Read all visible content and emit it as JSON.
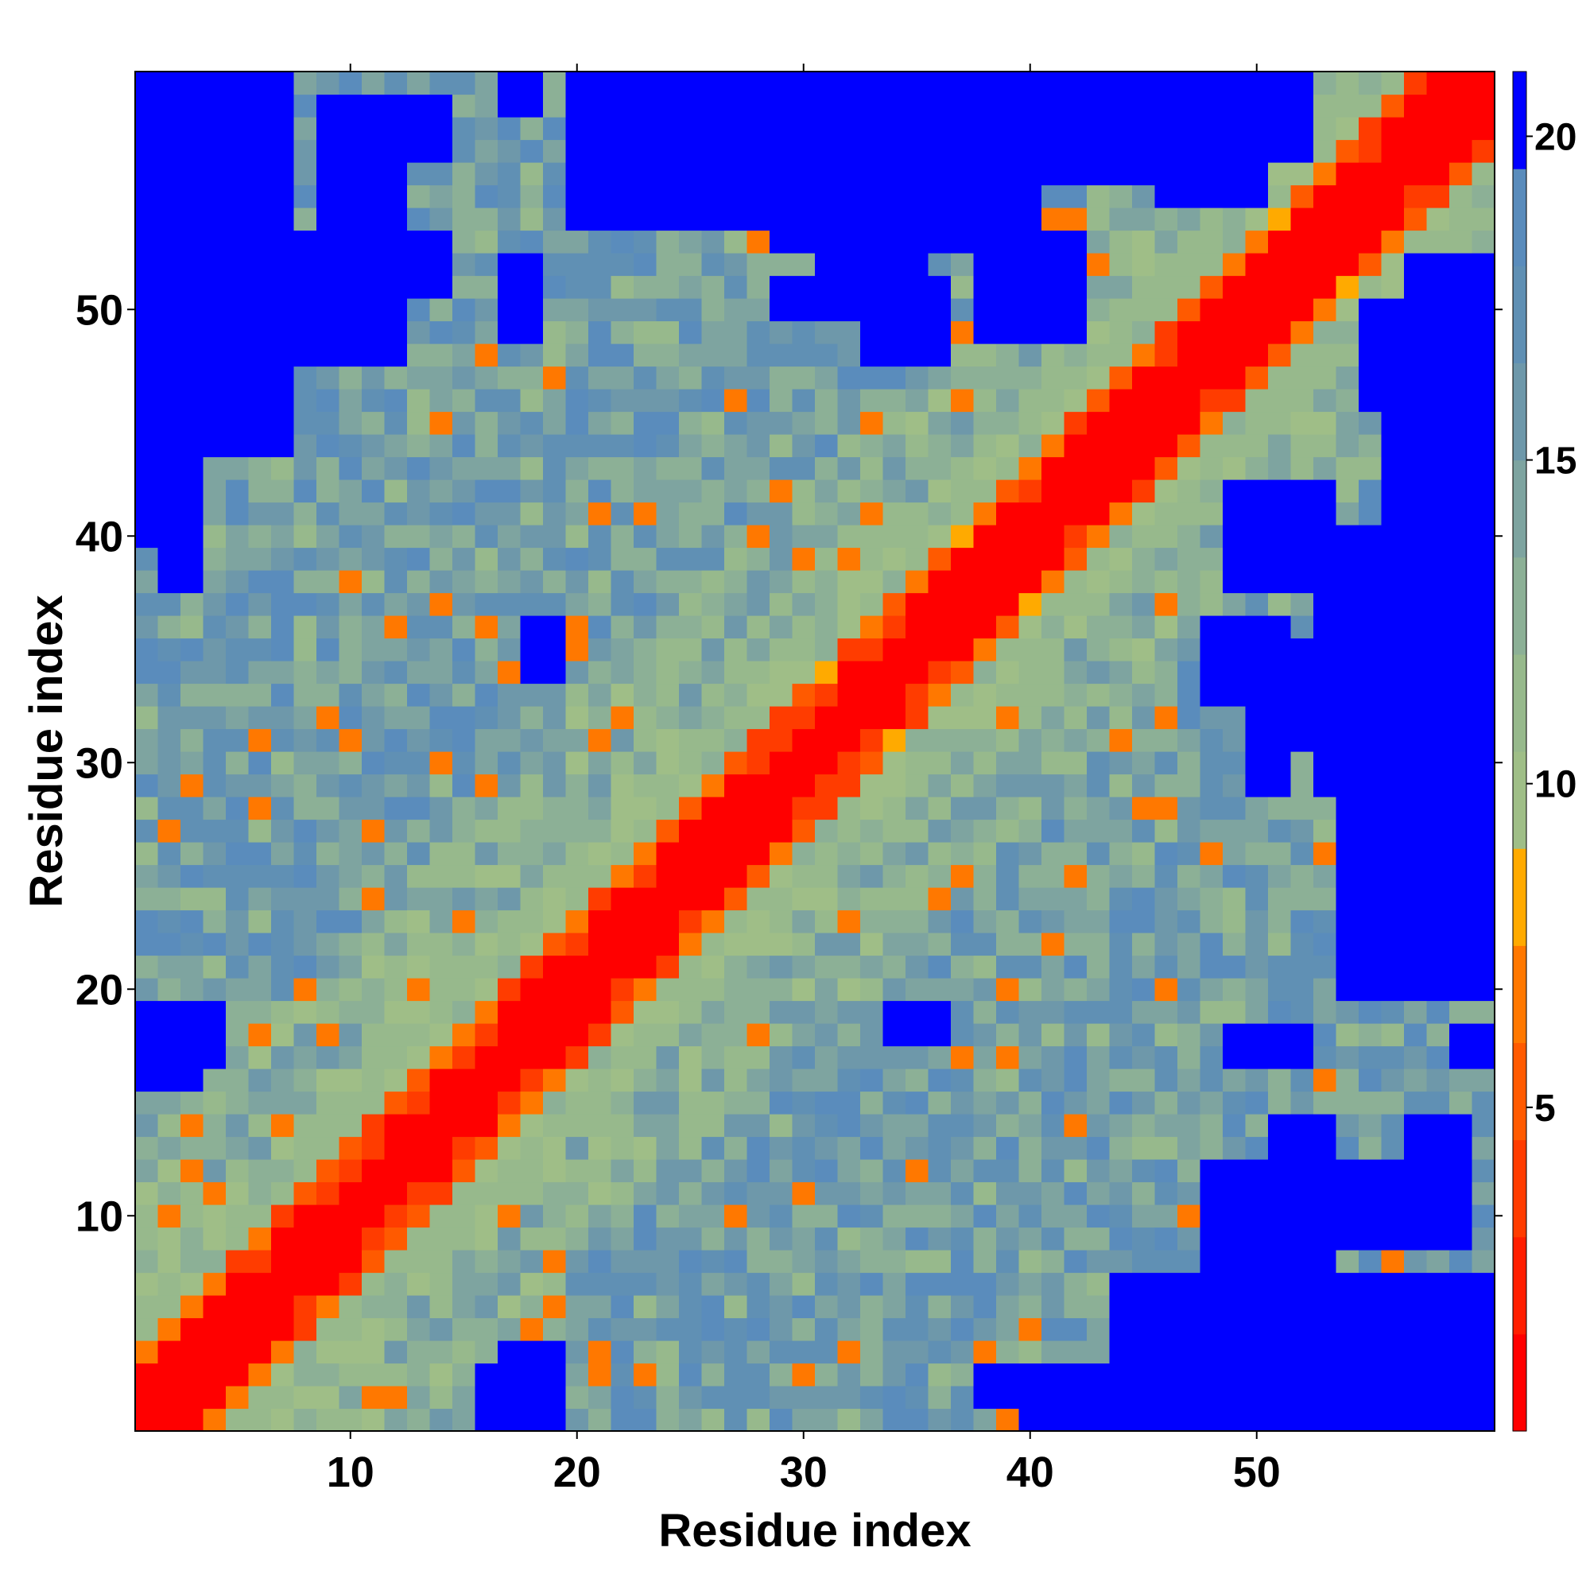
{
  "chart_data": {
    "type": "heatmap",
    "title": "",
    "xlabel": "Residue index",
    "ylabel": "Residue index",
    "n": 60,
    "xlim": [
      0.5,
      60.5
    ],
    "ylim": [
      0.5,
      60.5
    ],
    "x_ticks": [
      10,
      20,
      30,
      40,
      50
    ],
    "y_ticks": [
      10,
      20,
      30,
      40,
      50
    ],
    "colorbar": {
      "range": [
        0,
        21
      ],
      "ticks": [
        5,
        10,
        15,
        20
      ],
      "levels": [
        {
          "min": 0,
          "max": 1.5,
          "color": "#ff0000"
        },
        {
          "min": 1.5,
          "max": 3,
          "color": "#ff1e00"
        },
        {
          "min": 3,
          "max": 4.5,
          "color": "#ff3c00"
        },
        {
          "min": 4.5,
          "max": 6,
          "color": "#ff5a00"
        },
        {
          "min": 6,
          "max": 7.5,
          "color": "#ff7800"
        },
        {
          "min": 7.5,
          "max": 9,
          "color": "#ffaa00"
        },
        {
          "min": 9,
          "max": 10.5,
          "color": "#9fbe87"
        },
        {
          "min": 10.5,
          "max": 12,
          "color": "#97b98c"
        },
        {
          "min": 12,
          "max": 13.5,
          "color": "#8cb096"
        },
        {
          "min": 13.5,
          "max": 15,
          "color": "#7ea4a0"
        },
        {
          "min": 15,
          "max": 16.5,
          "color": "#6e98aa"
        },
        {
          "min": 16.5,
          "max": 18,
          "color": "#6090b4"
        },
        {
          "min": 18,
          "max": 19.5,
          "color": "#5a8cbc"
        },
        {
          "min": 19.5,
          "max": 21,
          "color": "#0000ff"
        }
      ]
    },
    "blue_regions": [
      [
        1,
        5,
        44,
        60
      ],
      [
        6,
        7,
        48,
        60
      ],
      [
        2,
        3,
        38,
        42
      ],
      [
        1,
        4,
        17,
        19
      ],
      [
        18,
        19,
        34,
        36
      ],
      [
        17,
        18,
        49,
        52
      ],
      [
        21,
        24,
        56,
        60
      ],
      [
        26,
        28,
        58,
        60
      ],
      [
        30,
        52,
        57,
        60
      ],
      [
        35,
        40,
        53,
        56
      ],
      [
        33,
        36,
        48,
        51
      ],
      [
        46,
        50,
        55,
        59
      ],
      [
        44,
        60,
        1,
        7
      ],
      [
        41,
        44,
        1,
        3
      ],
      [
        48,
        53,
        8,
        12
      ],
      [
        54,
        59,
        9,
        12
      ],
      [
        50,
        60,
        31,
        35
      ],
      [
        54,
        60,
        20,
        30
      ],
      [
        56,
        60,
        36,
        50
      ],
      [
        49,
        53,
        38,
        42
      ],
      [
        50,
        51,
        29,
        30
      ],
      [
        53,
        55,
        29,
        30
      ],
      [
        49,
        51,
        17,
        18
      ],
      [
        59,
        60,
        17,
        18
      ],
      [
        16,
        19,
        1,
        3
      ],
      [
        40,
        41,
        1,
        2
      ],
      [
        12,
        14,
        51,
        53
      ],
      [
        12,
        14,
        57,
        59
      ]
    ]
  }
}
